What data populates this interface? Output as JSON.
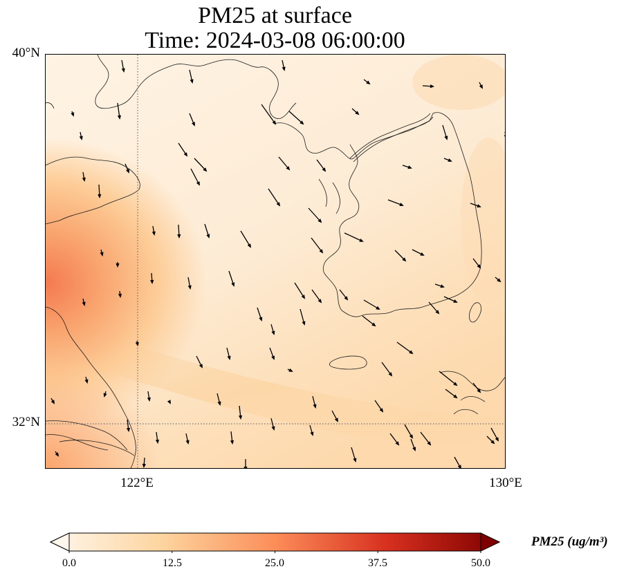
{
  "title": {
    "line1": "PM25 at surface",
    "line2": "Time: 2024-03-08 06:00:00"
  },
  "axes": {
    "lat_labels": [
      "40°N",
      "32°N"
    ],
    "lon_labels": [
      "122°E",
      "130°E"
    ],
    "lat_range": [
      31,
      40
    ],
    "lon_range": [
      120,
      130
    ],
    "gridlines": {
      "lats": [
        32
      ],
      "lons": [
        122
      ],
      "style": "dotted"
    }
  },
  "colorbar": {
    "label": "PM25 (ug/m³)",
    "ticks": [
      "0.0",
      "12.5",
      "25.0",
      "37.5",
      "50.0"
    ],
    "vmin": 0,
    "vmax": 50,
    "extend": "both",
    "colormap": "OrRd",
    "colors": [
      "#fff7ec",
      "#fdd49e",
      "#fc8d59",
      "#d7301f",
      "#7f0000"
    ]
  },
  "chart_data": {
    "type": "heatmap",
    "title": "PM25 at surface\nTime: 2024-03-08 06:00:00",
    "variable": "PM25",
    "units": "ug/m³",
    "xlim": [
      120,
      130
    ],
    "ylim": [
      31,
      40
    ],
    "features": [
      "concentration field",
      "wind vectors",
      "coastlines"
    ],
    "high_values_region": "west edge near 34-35°N (approx. 30 ug/m³)"
  }
}
